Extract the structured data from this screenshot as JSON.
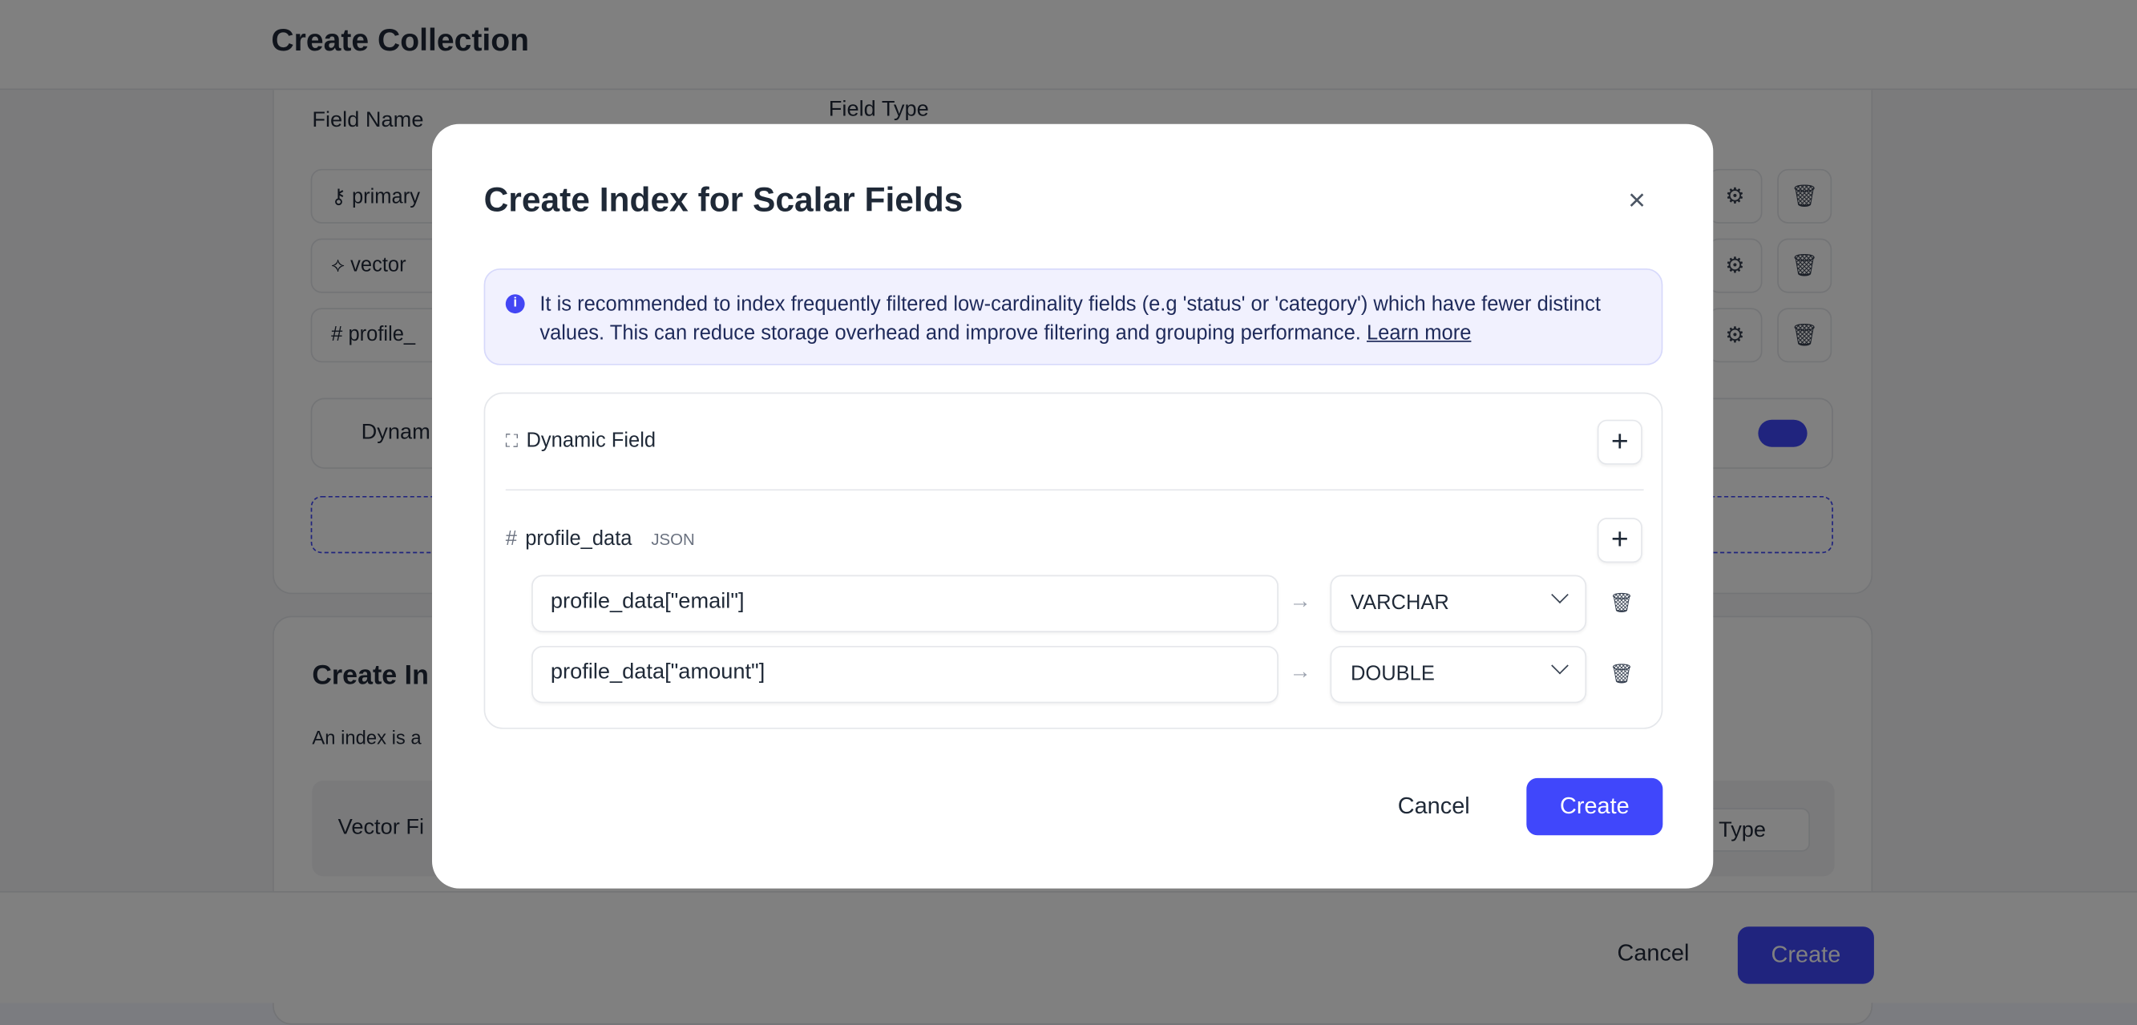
{
  "page": {
    "title": "Create Collection",
    "field_name_header": "Field Name",
    "field_type_header": "Field Type",
    "fields": [
      {
        "name": "primary",
        "icon": "key-icon"
      },
      {
        "name": "vector",
        "icon": "vector-icon"
      },
      {
        "name": "profile_",
        "icon": "hash-icon"
      }
    ],
    "dynamic_label": "Dynam",
    "index_title": "Create In",
    "index_desc": "An index is a",
    "vector_field_label": "Vector Fi",
    "type_label": "Type",
    "footer": {
      "cancel": "Cancel",
      "create": "Create"
    }
  },
  "modal": {
    "title": "Create Index for Scalar Fields",
    "info_text": "It is recommended to index frequently filtered low-cardinality fields (e.g 'status' or 'category') which have fewer distinct values. This can reduce storage overhead and improve filtering and grouping performance.",
    "learn_more": "Learn more",
    "dynamic_field": "Dynamic Field",
    "json_field": {
      "name": "profile_data",
      "type": "JSON"
    },
    "rows": [
      {
        "path": "profile_data[\"email\"]",
        "type": "VARCHAR"
      },
      {
        "path": "profile_data[\"amount\"]",
        "type": "DOUBLE"
      }
    ],
    "cancel": "Cancel",
    "create": "Create"
  },
  "colors": {
    "accent": "#4047fb",
    "info_bg": "#f1f1fe"
  }
}
